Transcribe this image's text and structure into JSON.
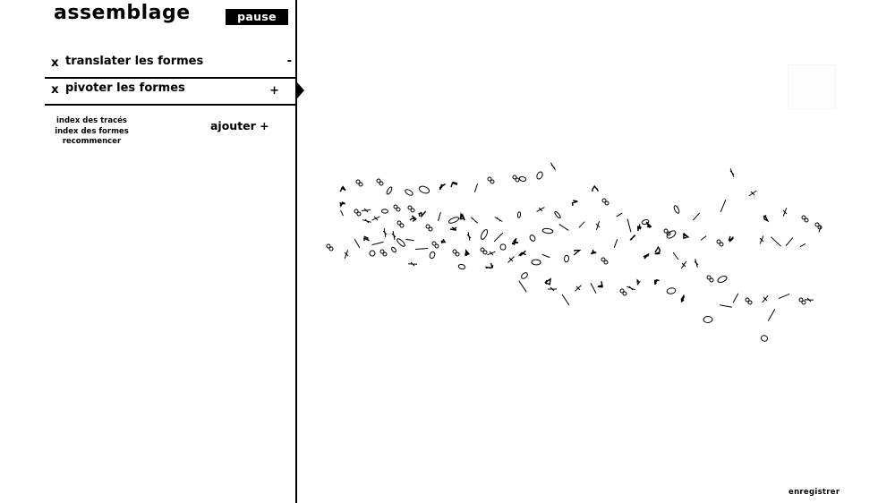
{
  "app": {
    "title": "assemblage",
    "pause_label": "pause"
  },
  "modules": [
    {
      "close_label": "x",
      "label": "translater les formes",
      "toggle": "-"
    },
    {
      "close_label": "x",
      "label": "pivoter les formes",
      "toggle": "+"
    }
  ],
  "links": {
    "traces_index": "index des tracés",
    "shapes_index": "index des formes",
    "restart": "recommencer"
  },
  "add_label": "ajouter +",
  "save_label": "enregistrer",
  "colors": {
    "ink": "#000000",
    "background": "#ffffff"
  }
}
